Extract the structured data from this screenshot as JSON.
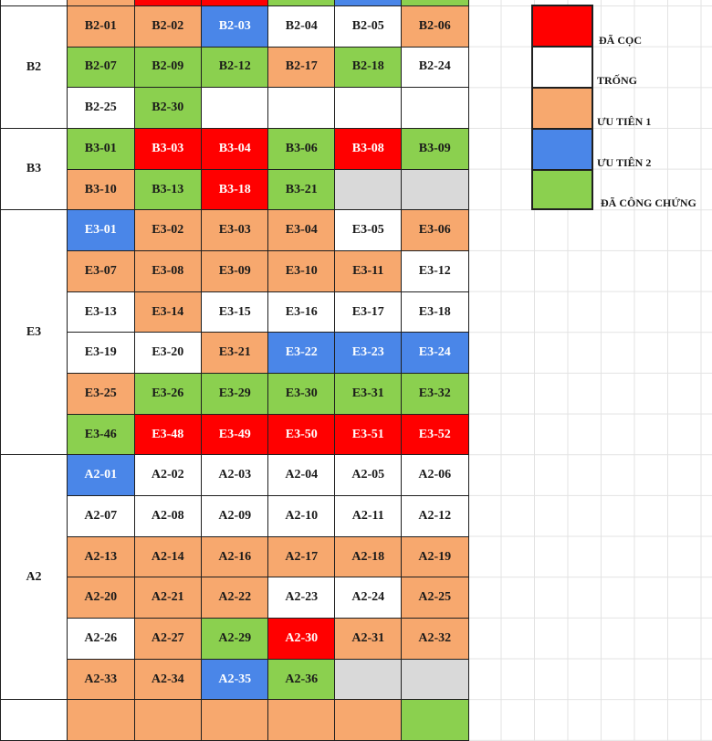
{
  "colors": {
    "red": "#ff0000",
    "white": "#ffffff",
    "orange": "#f7a86e",
    "blue": "#4a86e8",
    "green": "#8bd04f",
    "gray": "#d9d9d9"
  },
  "legend": [
    {
      "color": "red",
      "label": "ĐÃ CỌC"
    },
    {
      "color": "white",
      "label": "TRỐNG"
    },
    {
      "color": "orange",
      "label": "ƯU TIÊN 1"
    },
    {
      "color": "blue",
      "label": "ƯU TIÊN 2"
    },
    {
      "color": "green",
      "label": "ĐÃ CÔNG CHỨNG"
    }
  ],
  "top_partial_row": [
    {
      "label": "",
      "color": "orange"
    },
    {
      "label": "",
      "color": "red"
    },
    {
      "label": "",
      "color": "red"
    },
    {
      "label": "",
      "color": "green"
    },
    {
      "label": "",
      "color": "blue"
    },
    {
      "label": "",
      "color": "green"
    }
  ],
  "bottom_partial_row": [
    {
      "label": "",
      "color": "orange"
    },
    {
      "label": "",
      "color": "orange"
    },
    {
      "label": "",
      "color": "orange"
    },
    {
      "label": "",
      "color": "orange"
    },
    {
      "label": "",
      "color": "orange"
    },
    {
      "label": "",
      "color": "green"
    }
  ],
  "groups": [
    {
      "name": "B2",
      "rows": [
        [
          {
            "label": "B2-01",
            "color": "orange"
          },
          {
            "label": "B2-02",
            "color": "orange"
          },
          {
            "label": "B2-03",
            "color": "blue"
          },
          {
            "label": "B2-04",
            "color": "white"
          },
          {
            "label": "B2-05",
            "color": "white"
          },
          {
            "label": "B2-06",
            "color": "orange"
          }
        ],
        [
          {
            "label": "B2-07",
            "color": "green"
          },
          {
            "label": "B2-09",
            "color": "green"
          },
          {
            "label": "B2-12",
            "color": "green"
          },
          {
            "label": "B2-17",
            "color": "orange"
          },
          {
            "label": "B2-18",
            "color": "green"
          },
          {
            "label": "B2-24",
            "color": "white"
          }
        ],
        [
          {
            "label": "B2-25",
            "color": "white"
          },
          {
            "label": "B2-30",
            "color": "green"
          },
          {
            "label": "",
            "color": "white"
          },
          {
            "label": "",
            "color": "white"
          },
          {
            "label": "",
            "color": "white"
          },
          {
            "label": "",
            "color": "white"
          }
        ]
      ]
    },
    {
      "name": "B3",
      "rows": [
        [
          {
            "label": "B3-01",
            "color": "green"
          },
          {
            "label": "B3-03",
            "color": "red"
          },
          {
            "label": "B3-04",
            "color": "red"
          },
          {
            "label": "B3-06",
            "color": "green"
          },
          {
            "label": "B3-08",
            "color": "red"
          },
          {
            "label": "B3-09",
            "color": "green"
          }
        ],
        [
          {
            "label": "B3-10",
            "color": "orange"
          },
          {
            "label": "B3-13",
            "color": "green"
          },
          {
            "label": "B3-18",
            "color": "red"
          },
          {
            "label": "B3-21",
            "color": "green"
          },
          {
            "label": "",
            "color": "gray"
          },
          {
            "label": "",
            "color": "gray"
          }
        ]
      ]
    },
    {
      "name": "E3",
      "rows": [
        [
          {
            "label": "E3-01",
            "color": "blue"
          },
          {
            "label": "E3-02",
            "color": "orange"
          },
          {
            "label": "E3-03",
            "color": "orange"
          },
          {
            "label": "E3-04",
            "color": "orange"
          },
          {
            "label": "E3-05",
            "color": "white"
          },
          {
            "label": "E3-06",
            "color": "orange"
          }
        ],
        [
          {
            "label": "E3-07",
            "color": "orange"
          },
          {
            "label": "E3-08",
            "color": "orange"
          },
          {
            "label": "E3-09",
            "color": "orange"
          },
          {
            "label": "E3-10",
            "color": "orange"
          },
          {
            "label": "E3-11",
            "color": "orange"
          },
          {
            "label": "E3-12",
            "color": "white"
          }
        ],
        [
          {
            "label": "E3-13",
            "color": "white"
          },
          {
            "label": "E3-14",
            "color": "orange"
          },
          {
            "label": "E3-15",
            "color": "white"
          },
          {
            "label": "E3-16",
            "color": "white"
          },
          {
            "label": "E3-17",
            "color": "white"
          },
          {
            "label": "E3-18",
            "color": "white"
          }
        ],
        [
          {
            "label": "E3-19",
            "color": "white"
          },
          {
            "label": "E3-20",
            "color": "white"
          },
          {
            "label": "E3-21",
            "color": "orange"
          },
          {
            "label": "E3-22",
            "color": "blue"
          },
          {
            "label": "E3-23",
            "color": "blue"
          },
          {
            "label": "E3-24",
            "color": "blue"
          }
        ],
        [
          {
            "label": "E3-25",
            "color": "orange"
          },
          {
            "label": "E3-26",
            "color": "green"
          },
          {
            "label": "E3-29",
            "color": "green"
          },
          {
            "label": "E3-30",
            "color": "green"
          },
          {
            "label": "E3-31",
            "color": "green"
          },
          {
            "label": "E3-32",
            "color": "green"
          }
        ],
        [
          {
            "label": "E3-46",
            "color": "green"
          },
          {
            "label": "E3-48",
            "color": "red"
          },
          {
            "label": "E3-49",
            "color": "red"
          },
          {
            "label": "E3-50",
            "color": "red"
          },
          {
            "label": "E3-51",
            "color": "red"
          },
          {
            "label": "E3-52",
            "color": "red"
          }
        ]
      ]
    },
    {
      "name": "A2",
      "rows": [
        [
          {
            "label": "A2-01",
            "color": "blue"
          },
          {
            "label": "A2-02",
            "color": "white"
          },
          {
            "label": "A2-03",
            "color": "white"
          },
          {
            "label": "A2-04",
            "color": "white"
          },
          {
            "label": "A2-05",
            "color": "white"
          },
          {
            "label": "A2-06",
            "color": "white"
          }
        ],
        [
          {
            "label": "A2-07",
            "color": "white"
          },
          {
            "label": "A2-08",
            "color": "white"
          },
          {
            "label": "A2-09",
            "color": "white"
          },
          {
            "label": "A2-10",
            "color": "white"
          },
          {
            "label": "A2-11",
            "color": "white"
          },
          {
            "label": "A2-12",
            "color": "white"
          }
        ],
        [
          {
            "label": "A2-13",
            "color": "orange"
          },
          {
            "label": "A2-14",
            "color": "orange"
          },
          {
            "label": "A2-16",
            "color": "orange"
          },
          {
            "label": "A2-17",
            "color": "orange"
          },
          {
            "label": "A2-18",
            "color": "orange"
          },
          {
            "label": "A2-19",
            "color": "orange"
          }
        ],
        [
          {
            "label": "A2-20",
            "color": "orange"
          },
          {
            "label": "A2-21",
            "color": "orange"
          },
          {
            "label": "A2-22",
            "color": "orange"
          },
          {
            "label": "A2-23",
            "color": "white"
          },
          {
            "label": "A2-24",
            "color": "white"
          },
          {
            "label": "A2-25",
            "color": "orange"
          }
        ],
        [
          {
            "label": "A2-26",
            "color": "white"
          },
          {
            "label": "A2-27",
            "color": "orange"
          },
          {
            "label": "A2-29",
            "color": "green"
          },
          {
            "label": "A2-30",
            "color": "red"
          },
          {
            "label": "A2-31",
            "color": "orange"
          },
          {
            "label": "A2-32",
            "color": "orange"
          }
        ],
        [
          {
            "label": "A2-33",
            "color": "orange"
          },
          {
            "label": "A2-34",
            "color": "orange"
          },
          {
            "label": "A2-35",
            "color": "blue"
          },
          {
            "label": "A2-36",
            "color": "green"
          },
          {
            "label": "",
            "color": "gray"
          },
          {
            "label": "",
            "color": "gray"
          }
        ]
      ]
    }
  ]
}
